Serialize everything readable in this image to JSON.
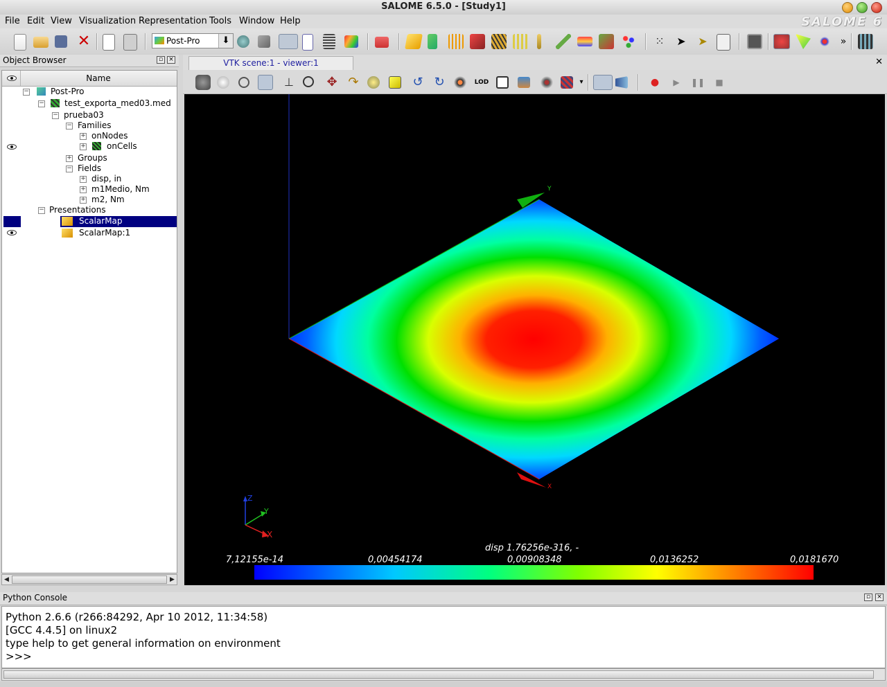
{
  "window": {
    "title": "SALOME 6.5.0 - [Study1]"
  },
  "brand": "SALOME 6",
  "menu": [
    "File",
    "Edit",
    "View",
    "Visualization",
    "Representation",
    "Tools",
    "Window",
    "Help"
  ],
  "toolbar": {
    "module": "Post-Pro",
    "icons": [
      "new-icon",
      "open-icon",
      "save-icon",
      "close-icon",
      "copy-icon",
      "paste-icon",
      "module-geom-icon",
      "module-mesh-icon",
      "module-postpro-icon",
      "module-doc-icon",
      "module-table-icon",
      "module-graph-icon",
      "import-med-icon",
      "scalar-map-icon",
      "deformed-shape-icon",
      "vectors-icon",
      "iso-surfaces-icon",
      "cut-planes-icon",
      "cut-lines-icon",
      "plot3d-icon",
      "stream-lines-icon",
      "gauss-points-icon",
      "cut-segment-icon",
      "points-icon",
      "select-icon",
      "selection-filter-icon",
      "rectangle-select-icon",
      "clipping-icon",
      "scalar-bar-icon",
      "translucency-icon",
      "more-icon",
      "film-icon"
    ]
  },
  "object_browser": {
    "title": "Object Browser",
    "column_name": "Name",
    "tree": [
      {
        "label": "Post-Pro",
        "icon": "postpro-icon"
      },
      {
        "label": "test_exporta_med03.med",
        "icon": "med-file-icon"
      },
      {
        "label": "prueba03"
      },
      {
        "label": "Families"
      },
      {
        "label": "onNodes"
      },
      {
        "label": "onCells",
        "icon": "cells-icon"
      },
      {
        "label": "Groups"
      },
      {
        "label": "Fields"
      },
      {
        "label": "disp, in"
      },
      {
        "label": "m1Medio, Nm"
      },
      {
        "label": "m2, Nm"
      },
      {
        "label": "Presentations"
      },
      {
        "label": "ScalarMap",
        "icon": "scalarmap-icon",
        "selected": true
      },
      {
        "label": "ScalarMap:1",
        "icon": "scalarmap-icon"
      }
    ]
  },
  "viewer": {
    "tab": "VTK scene:1 - viewer:1",
    "axis_labels": {
      "x": "X",
      "y": "Y",
      "z": "Z"
    },
    "scalar_bar": {
      "title": "disp 1.76256e-316, -",
      "labels": [
        "7,12155e-14",
        "0,00454174",
        "0,00908348",
        "0,0136252",
        "0,0181670"
      ],
      "colors": [
        "#0000ff",
        "#00c8ff",
        "#00ff80",
        "#80ff00",
        "#ffff00",
        "#ff8000",
        "#ff0000"
      ]
    }
  },
  "python_console": {
    "title": "Python Console",
    "lines": [
      "Python 2.6.6 (r266:84292, Apr 10 2012, 11:34:58)",
      "[GCC 4.4.5] on linux2",
      "type help to get general information on environment",
      ">>>"
    ]
  }
}
